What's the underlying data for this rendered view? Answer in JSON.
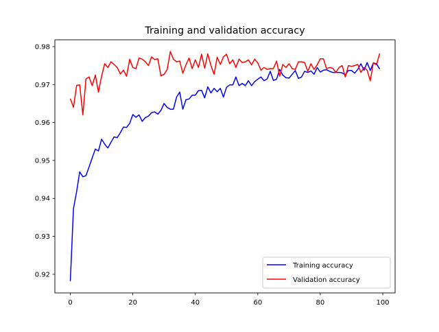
{
  "chart_data": {
    "type": "line",
    "title": "Training and validation accuracy",
    "xlabel": "",
    "ylabel": "",
    "xlim": [
      -4.95,
      103.95
    ],
    "ylim": [
      0.9151,
      0.9818
    ],
    "xticks": [
      0,
      20,
      40,
      60,
      80,
      100
    ],
    "yticks": [
      0.92,
      0.93,
      0.94,
      0.95,
      0.96,
      0.97,
      0.98
    ],
    "xtick_labels": [
      "0",
      "20",
      "40",
      "60",
      "80",
      "100"
    ],
    "ytick_labels": [
      "0.92",
      "0.93",
      "0.94",
      "0.95",
      "0.96",
      "0.97",
      "0.98"
    ],
    "grid": false,
    "legend_placement": "bottom-right",
    "series": [
      {
        "name": "Training accuracy",
        "color": "#0000ff",
        "values": [
          0.9182,
          0.9373,
          0.9418,
          0.947,
          0.9457,
          0.946,
          0.9483,
          0.9507,
          0.953,
          0.9525,
          0.9556,
          0.9543,
          0.9533,
          0.9548,
          0.9562,
          0.956,
          0.9573,
          0.9588,
          0.9587,
          0.9598,
          0.9621,
          0.9614,
          0.962,
          0.9603,
          0.9613,
          0.9617,
          0.9626,
          0.9628,
          0.9622,
          0.9632,
          0.965,
          0.964,
          0.9635,
          0.9635,
          0.9667,
          0.968,
          0.9635,
          0.966,
          0.9662,
          0.9672,
          0.9672,
          0.9684,
          0.9685,
          0.9665,
          0.9694,
          0.9678,
          0.969,
          0.9681,
          0.969,
          0.9667,
          0.9693,
          0.9699,
          0.9699,
          0.972,
          0.9697,
          0.9703,
          0.9697,
          0.971,
          0.9697,
          0.9708,
          0.9714,
          0.972,
          0.971,
          0.9715,
          0.9735,
          0.9711,
          0.9714,
          0.974,
          0.9725,
          0.9718,
          0.9717,
          0.9727,
          0.9737,
          0.9716,
          0.972,
          0.9735,
          0.9732,
          0.9736,
          0.9727,
          0.9745,
          0.9733,
          0.9738,
          0.9739,
          0.9735,
          0.9732,
          0.9732,
          0.9732,
          0.9731,
          0.9725,
          0.9737,
          0.9737,
          0.973,
          0.974,
          0.9755,
          0.9738,
          0.9758,
          0.9737,
          0.9757,
          0.9755,
          0.9741
        ]
      },
      {
        "name": "Validation accuracy",
        "color": "#ff0000",
        "values": [
          0.9663,
          0.964,
          0.9698,
          0.9699,
          0.962,
          0.9715,
          0.972,
          0.9697,
          0.9725,
          0.968,
          0.9722,
          0.9755,
          0.9745,
          0.976,
          0.9753,
          0.9745,
          0.9728,
          0.9738,
          0.9722,
          0.9767,
          0.9745,
          0.9742,
          0.977,
          0.9767,
          0.976,
          0.975,
          0.9773,
          0.9766,
          0.9768,
          0.9723,
          0.9727,
          0.974,
          0.9787,
          0.9767,
          0.976,
          0.9762,
          0.973,
          0.9752,
          0.977,
          0.9742,
          0.9765,
          0.9745,
          0.978,
          0.9743,
          0.9781,
          0.975,
          0.9727,
          0.9772,
          0.9753,
          0.9773,
          0.978,
          0.9755,
          0.9765,
          0.9745,
          0.9767,
          0.9758,
          0.976,
          0.9765,
          0.9752,
          0.9767,
          0.9757,
          0.9738,
          0.9745,
          0.974,
          0.9742,
          0.9742,
          0.9762,
          0.9722,
          0.9753,
          0.9745,
          0.9755,
          0.9742,
          0.974,
          0.976,
          0.976,
          0.9758,
          0.9735,
          0.9755,
          0.974,
          0.9752,
          0.9768,
          0.9768,
          0.9742,
          0.9745,
          0.9743,
          0.9732,
          0.9745,
          0.975,
          0.972,
          0.975,
          0.9748,
          0.975,
          0.9753,
          0.9732,
          0.9745,
          0.9738,
          0.971,
          0.9757,
          0.9752,
          0.9782
        ]
      }
    ]
  }
}
